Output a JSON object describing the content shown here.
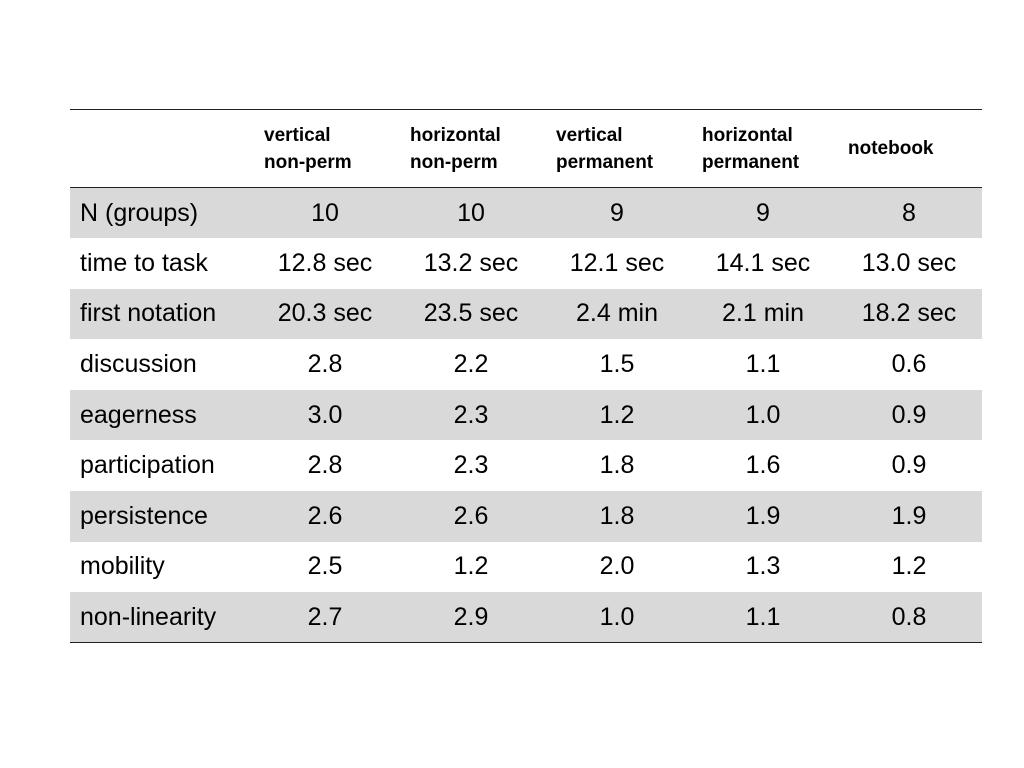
{
  "table": {
    "header": [
      {
        "line1": "vertical",
        "line2": "non-perm"
      },
      {
        "line1": "horizontal",
        "line2": "non-perm"
      },
      {
        "line1": "vertical",
        "line2": "permanent"
      },
      {
        "line1": "horizontal",
        "line2": "permanent"
      },
      {
        "line1": "notebook",
        "line2": ""
      }
    ],
    "rows": [
      {
        "label": "N (groups)",
        "values": [
          "10",
          "10",
          "9",
          "9",
          "8"
        ],
        "shaded": true
      },
      {
        "label": "time to task",
        "values": [
          "12.8 sec",
          "13.2 sec",
          "12.1 sec",
          "14.1 sec",
          "13.0 sec"
        ],
        "shaded": false
      },
      {
        "label": "first notation",
        "values": [
          "20.3 sec",
          "23.5 sec",
          "2.4 min",
          "2.1 min",
          "18.2 sec"
        ],
        "shaded": true
      },
      {
        "label": "discussion",
        "values": [
          "2.8",
          "2.2",
          "1.5",
          "1.1",
          "0.6"
        ],
        "shaded": false
      },
      {
        "label": "eagerness",
        "values": [
          "3.0",
          "2.3",
          "1.2",
          "1.0",
          "0.9"
        ],
        "shaded": true
      },
      {
        "label": "participation",
        "values": [
          "2.8",
          "2.3",
          "1.8",
          "1.6",
          "0.9"
        ],
        "shaded": false
      },
      {
        "label": "persistence",
        "values": [
          "2.6",
          "2.6",
          "1.8",
          "1.9",
          "1.9"
        ],
        "shaded": true
      },
      {
        "label": "mobility",
        "values": [
          "2.5",
          "1.2",
          "2.0",
          "1.3",
          "1.2"
        ],
        "shaded": false
      },
      {
        "label": "non-linearity",
        "values": [
          "2.7",
          "2.9",
          "1.0",
          "1.1",
          "0.8"
        ],
        "shaded": true
      }
    ],
    "colors": {
      "shaded_row": "#d9d9d9",
      "rule": "#222222"
    }
  }
}
